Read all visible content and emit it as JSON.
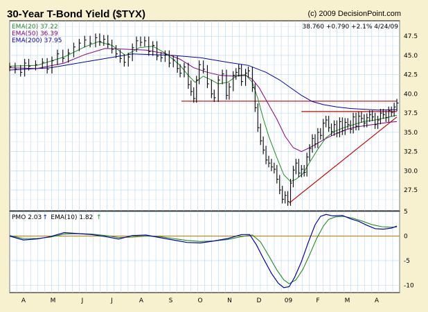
{
  "header": {
    "title": "30-Year T-Bond Yield ($TYX)",
    "copyright": "(c) 2009 DecisionPoint.com",
    "quote": "38.760 +0.790 +2.1% 4/24/09"
  },
  "chart_data": [
    {
      "type": "line",
      "panel": "price",
      "legend": [
        {
          "label": "EMA(20) 37.22",
          "color": "#1f8a1f"
        },
        {
          "label": "EMA(50) 36.39",
          "color": "#800080"
        },
        {
          "label": "EMA(200) 37.95",
          "color": "#0000b0"
        }
      ],
      "ylim": [
        24.8,
        49.5
      ],
      "yticks": [
        "47.5",
        "45.0",
        "42.5",
        "40.0",
        "37.5",
        "35.0",
        "32.5",
        "30.0",
        "27.5"
      ],
      "xlabels": [
        "A",
        "M",
        "J",
        "J",
        "A",
        "S",
        "O",
        "N",
        "D",
        "09",
        "F",
        "M",
        "A"
      ],
      "price": [
        [
          0,
          43.5
        ],
        [
          8,
          43.2
        ],
        [
          16,
          42.8
        ],
        [
          22,
          44.0
        ],
        [
          28,
          43.6
        ],
        [
          38,
          43.8
        ],
        [
          48,
          44.1
        ],
        [
          55,
          43.2
        ],
        [
          62,
          44.3
        ],
        [
          70,
          45.2
        ],
        [
          78,
          44.6
        ],
        [
          86,
          45.3
        ],
        [
          94,
          46.1
        ],
        [
          102,
          46.6
        ],
        [
          110,
          47.0
        ],
        [
          118,
          46.6
        ],
        [
          126,
          47.3
        ],
        [
          132,
          46.8
        ],
        [
          138,
          47.1
        ],
        [
          144,
          46.5
        ],
        [
          150,
          45.8
        ],
        [
          156,
          45.2
        ],
        [
          162,
          44.6
        ],
        [
          168,
          44.1
        ],
        [
          174,
          44.8
        ],
        [
          180,
          46.0
        ],
        [
          186,
          46.9
        ],
        [
          192,
          46.7
        ],
        [
          198,
          46.9
        ],
        [
          204,
          45.5
        ],
        [
          210,
          46.3
        ],
        [
          216,
          44.9
        ],
        [
          222,
          44.7
        ],
        [
          228,
          45.1
        ],
        [
          234,
          44.0
        ],
        [
          240,
          44.4
        ],
        [
          246,
          43.3
        ],
        [
          250,
          42.7
        ],
        [
          256,
          43.5
        ],
        [
          262,
          41.2
        ],
        [
          266,
          40.3
        ],
        [
          270,
          39.4
        ],
        [
          274,
          41.8
        ],
        [
          278,
          43.8
        ],
        [
          284,
          43.2
        ],
        [
          290,
          41.3
        ],
        [
          296,
          40.0
        ],
        [
          300,
          39.5
        ],
        [
          306,
          41.8
        ],
        [
          312,
          42.6
        ],
        [
          318,
          39.8
        ],
        [
          322,
          40.9
        ],
        [
          328,
          42.4
        ],
        [
          332,
          42.8
        ],
        [
          336,
          43.3
        ],
        [
          340,
          41.6
        ],
        [
          346,
          42.7
        ],
        [
          350,
          43.0
        ],
        [
          356,
          40.8
        ],
        [
          360,
          38.2
        ],
        [
          364,
          35.6
        ],
        [
          368,
          33.9
        ],
        [
          372,
          32.7
        ],
        [
          376,
          31.4
        ],
        [
          380,
          31.0
        ],
        [
          384,
          30.5
        ],
        [
          388,
          30.2
        ],
        [
          392,
          28.9
        ],
        [
          396,
          27.5
        ],
        [
          400,
          26.3
        ],
        [
          404,
          26.8
        ],
        [
          408,
          26.0
        ],
        [
          412,
          28.4
        ],
        [
          416,
          30.1
        ],
        [
          420,
          31.0
        ],
        [
          424,
          29.7
        ],
        [
          428,
          30.2
        ],
        [
          432,
          29.8
        ],
        [
          436,
          31.8
        ],
        [
          440,
          32.9
        ],
        [
          444,
          34.2
        ],
        [
          448,
          33.5
        ],
        [
          452,
          35.0
        ],
        [
          456,
          34.6
        ],
        [
          460,
          36.2
        ],
        [
          464,
          36.6
        ],
        [
          468,
          35.6
        ],
        [
          472,
          35.1
        ],
        [
          476,
          36.0
        ],
        [
          480,
          34.9
        ],
        [
          484,
          36.4
        ],
        [
          488,
          35.2
        ],
        [
          492,
          36.3
        ],
        [
          496,
          36.0
        ],
        [
          500,
          35.4
        ],
        [
          504,
          37.0
        ],
        [
          508,
          35.8
        ],
        [
          512,
          37.1
        ],
        [
          516,
          36.8
        ],
        [
          520,
          36.2
        ],
        [
          524,
          36.9
        ],
        [
          528,
          37.3
        ],
        [
          532,
          37.0
        ],
        [
          536,
          36.0
        ],
        [
          540,
          36.6
        ],
        [
          544,
          37.5
        ],
        [
          548,
          37.3
        ],
        [
          552,
          36.9
        ],
        [
          556,
          37.8
        ],
        [
          560,
          37.6
        ],
        [
          564,
          38.3
        ],
        [
          568,
          38.8
        ]
      ],
      "ema20": [
        [
          0,
          43.6
        ],
        [
          40,
          43.7
        ],
        [
          80,
          44.8
        ],
        [
          110,
          46.1
        ],
        [
          130,
          46.8
        ],
        [
          150,
          46.3
        ],
        [
          170,
          45.0
        ],
        [
          190,
          46.0
        ],
        [
          210,
          46.2
        ],
        [
          230,
          45.2
        ],
        [
          250,
          43.7
        ],
        [
          262,
          42.4
        ],
        [
          272,
          41.5
        ],
        [
          284,
          42.3
        ],
        [
          296,
          41.8
        ],
        [
          306,
          41.3
        ],
        [
          320,
          41.5
        ],
        [
          334,
          42.4
        ],
        [
          346,
          42.5
        ],
        [
          356,
          41.5
        ],
        [
          364,
          39.4
        ],
        [
          372,
          36.8
        ],
        [
          380,
          34.5
        ],
        [
          392,
          31.7
        ],
        [
          402,
          29.5
        ],
        [
          412,
          28.6
        ],
        [
          420,
          28.9
        ],
        [
          430,
          29.6
        ],
        [
          440,
          31.1
        ],
        [
          452,
          32.8
        ],
        [
          464,
          34.3
        ],
        [
          476,
          35.1
        ],
        [
          490,
          35.6
        ],
        [
          504,
          36.0
        ],
        [
          520,
          36.4
        ],
        [
          536,
          36.6
        ],
        [
          552,
          36.9
        ],
        [
          568,
          37.22
        ]
      ],
      "ema50": [
        [
          0,
          43.4
        ],
        [
          40,
          43.3
        ],
        [
          80,
          44.0
        ],
        [
          110,
          45.1
        ],
        [
          140,
          45.9
        ],
        [
          170,
          45.8
        ],
        [
          200,
          45.7
        ],
        [
          230,
          45.2
        ],
        [
          250,
          44.5
        ],
        [
          270,
          43.4
        ],
        [
          290,
          42.8
        ],
        [
          310,
          42.4
        ],
        [
          330,
          42.3
        ],
        [
          346,
          42.4
        ],
        [
          356,
          41.9
        ],
        [
          366,
          40.8
        ],
        [
          378,
          38.9
        ],
        [
          392,
          36.7
        ],
        [
          404,
          34.5
        ],
        [
          416,
          33.0
        ],
        [
          428,
          32.5
        ],
        [
          440,
          33.0
        ],
        [
          452,
          33.6
        ],
        [
          464,
          34.2
        ],
        [
          478,
          34.8
        ],
        [
          492,
          35.3
        ],
        [
          508,
          35.7
        ],
        [
          524,
          35.9
        ],
        [
          540,
          36.1
        ],
        [
          556,
          36.3
        ],
        [
          568,
          36.39
        ]
      ],
      "ema200": [
        [
          0,
          43.1
        ],
        [
          60,
          43.4
        ],
        [
          120,
          44.3
        ],
        [
          180,
          45.2
        ],
        [
          240,
          45.0
        ],
        [
          280,
          44.7
        ],
        [
          320,
          44.1
        ],
        [
          350,
          43.7
        ],
        [
          376,
          42.8
        ],
        [
          396,
          41.8
        ],
        [
          412,
          40.8
        ],
        [
          428,
          39.8
        ],
        [
          444,
          39.0
        ],
        [
          460,
          38.6
        ],
        [
          480,
          38.3
        ],
        [
          500,
          38.1
        ],
        [
          520,
          38.0
        ],
        [
          540,
          37.9
        ],
        [
          568,
          37.95
        ]
      ],
      "resistance": [
        {
          "from": [
            252,
            39.05
          ],
          "to": [
            568,
            39.05
          ],
          "color": "#cc0000"
        },
        {
          "from": [
            428,
            37.7
          ],
          "to": [
            568,
            37.7
          ],
          "color": "#cc0000"
        }
      ],
      "support": [
        {
          "from": [
            410,
            25.8
          ],
          "to": [
            568,
            37.0
          ],
          "color": "#cc0000"
        }
      ]
    },
    {
      "type": "line",
      "panel": "pmo",
      "legend": [
        {
          "label": "PMO 2.03",
          "color": "#0000b0",
          "arrow": "up"
        },
        {
          "label": "EMA(10) 1.82",
          "color": "#1f8a1f",
          "arrow": "up"
        }
      ],
      "ylim": [
        -11.5,
        5
      ],
      "yticks": [
        "5",
        "0",
        "-5",
        "-10"
      ],
      "zero_line": 0,
      "pmo": [
        [
          0,
          0.0
        ],
        [
          20,
          -0.8
        ],
        [
          40,
          -0.6
        ],
        [
          60,
          -0.1
        ],
        [
          80,
          0.7
        ],
        [
          100,
          0.5
        ],
        [
          120,
          0.3
        ],
        [
          140,
          -0.1
        ],
        [
          160,
          -0.6
        ],
        [
          180,
          0.1
        ],
        [
          200,
          0.2
        ],
        [
          220,
          -0.3
        ],
        [
          240,
          -0.8
        ],
        [
          260,
          -1.3
        ],
        [
          280,
          -1.4
        ],
        [
          300,
          -1.0
        ],
        [
          320,
          -0.5
        ],
        [
          340,
          0.3
        ],
        [
          352,
          0.3
        ],
        [
          362,
          -1.8
        ],
        [
          372,
          -4.5
        ],
        [
          384,
          -7.6
        ],
        [
          394,
          -9.6
        ],
        [
          402,
          -10.5
        ],
        [
          410,
          -10.3
        ],
        [
          418,
          -8.4
        ],
        [
          428,
          -5.2
        ],
        [
          438,
          -1.3
        ],
        [
          448,
          2.3
        ],
        [
          456,
          4.0
        ],
        [
          464,
          4.4
        ],
        [
          474,
          4.1
        ],
        [
          488,
          4.2
        ],
        [
          500,
          3.5
        ],
        [
          512,
          3.0
        ],
        [
          524,
          2.2
        ],
        [
          536,
          1.5
        ],
        [
          548,
          1.4
        ],
        [
          560,
          1.6
        ],
        [
          568,
          2.03
        ]
      ],
      "pmo_ema": [
        [
          0,
          0.1
        ],
        [
          20,
          -0.5
        ],
        [
          40,
          -0.5
        ],
        [
          60,
          -0.2
        ],
        [
          80,
          0.4
        ],
        [
          100,
          0.5
        ],
        [
          120,
          0.4
        ],
        [
          140,
          0.1
        ],
        [
          160,
          -0.3
        ],
        [
          180,
          -0.2
        ],
        [
          200,
          0.0
        ],
        [
          220,
          -0.1
        ],
        [
          240,
          -0.5
        ],
        [
          260,
          -0.9
        ],
        [
          280,
          -1.1
        ],
        [
          300,
          -1.0
        ],
        [
          320,
          -0.7
        ],
        [
          340,
          -0.1
        ],
        [
          356,
          0.2
        ],
        [
          368,
          -1.2
        ],
        [
          380,
          -4.0
        ],
        [
          392,
          -6.9
        ],
        [
          402,
          -8.9
        ],
        [
          410,
          -9.7
        ],
        [
          420,
          -8.9
        ],
        [
          430,
          -6.8
        ],
        [
          440,
          -3.8
        ],
        [
          450,
          -0.6
        ],
        [
          460,
          2.0
        ],
        [
          468,
          3.4
        ],
        [
          478,
          3.9
        ],
        [
          490,
          4.0
        ],
        [
          504,
          3.6
        ],
        [
          518,
          3.0
        ],
        [
          532,
          2.3
        ],
        [
          546,
          1.9
        ],
        [
          558,
          1.8
        ],
        [
          568,
          1.82
        ]
      ]
    }
  ]
}
